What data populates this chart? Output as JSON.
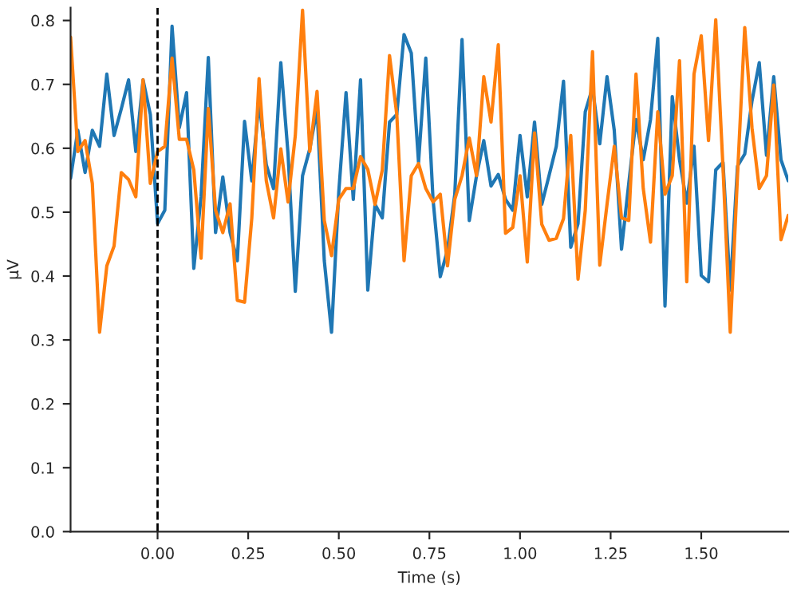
{
  "chart_data": {
    "type": "line",
    "xlabel": "Time (s)",
    "ylabel": "µV",
    "x": [
      -0.24,
      -0.22,
      -0.2,
      -0.18,
      -0.16,
      -0.14,
      -0.12,
      -0.1,
      -0.08,
      -0.06,
      -0.04,
      -0.02,
      0.0,
      0.02,
      0.04,
      0.06,
      0.08,
      0.1,
      0.12,
      0.14,
      0.16,
      0.18,
      0.2,
      0.22,
      0.24,
      0.26,
      0.28,
      0.3,
      0.32,
      0.34,
      0.36,
      0.38,
      0.4,
      0.42,
      0.44,
      0.46,
      0.48,
      0.5,
      0.52,
      0.54,
      0.56,
      0.58,
      0.6,
      0.62,
      0.64,
      0.66,
      0.68,
      0.7,
      0.72,
      0.74,
      0.76,
      0.78,
      0.8,
      0.82,
      0.84,
      0.86,
      0.88,
      0.9,
      0.92,
      0.94,
      0.96,
      0.98,
      1.0,
      1.02,
      1.04,
      1.06,
      1.08,
      1.1,
      1.12,
      1.14,
      1.16,
      1.18,
      1.2,
      1.22,
      1.24,
      1.26,
      1.28,
      1.3,
      1.32,
      1.34,
      1.36,
      1.38,
      1.4,
      1.42,
      1.44,
      1.46,
      1.48,
      1.5,
      1.52,
      1.54,
      1.56,
      1.58,
      1.6,
      1.62,
      1.64,
      1.66,
      1.68,
      1.7,
      1.72,
      1.74
    ],
    "series": [
      {
        "color": "#1f77b4",
        "values": [
          0.553,
          0.628,
          0.562,
          0.628,
          0.603,
          0.716,
          0.62,
          0.662,
          0.707,
          0.595,
          0.707,
          0.653,
          0.482,
          0.503,
          0.791,
          0.632,
          0.687,
          0.412,
          0.524,
          0.742,
          0.468,
          0.555,
          0.468,
          0.424,
          0.642,
          0.549,
          0.674,
          0.574,
          0.537,
          0.734,
          0.591,
          0.376,
          0.557,
          0.599,
          0.662,
          0.424,
          0.312,
          0.532,
          0.687,
          0.52,
          0.707,
          0.378,
          0.512,
          0.491,
          0.641,
          0.653,
          0.778,
          0.749,
          0.578,
          0.741,
          0.52,
          0.399,
          0.441,
          0.528,
          0.77,
          0.487,
          0.557,
          0.612,
          0.541,
          0.559,
          0.52,
          0.503,
          0.62,
          0.524,
          0.641,
          0.512,
          0.557,
          0.603,
          0.705,
          0.445,
          0.482,
          0.657,
          0.695,
          0.607,
          0.712,
          0.628,
          0.442,
          0.545,
          0.645,
          0.582,
          0.645,
          0.772,
          0.353,
          0.681,
          0.582,
          0.514,
          0.603,
          0.401,
          0.391,
          0.566,
          0.578,
          0.378,
          0.572,
          0.591,
          0.674,
          0.734,
          0.589,
          0.712,
          0.582,
          0.549
        ]
      },
      {
        "color": "#ff7f0e",
        "values": [
          0.774,
          0.595,
          0.612,
          0.545,
          0.312,
          0.416,
          0.447,
          0.562,
          0.551,
          0.524,
          0.707,
          0.545,
          0.595,
          0.603,
          0.741,
          0.614,
          0.614,
          0.566,
          0.428,
          0.662,
          0.503,
          0.468,
          0.513,
          0.362,
          0.359,
          0.491,
          0.709,
          0.549,
          0.491,
          0.599,
          0.516,
          0.62,
          0.816,
          0.595,
          0.689,
          0.487,
          0.432,
          0.52,
          0.537,
          0.537,
          0.587,
          0.567,
          0.512,
          0.566,
          0.745,
          0.653,
          0.424,
          0.557,
          0.576,
          0.537,
          0.516,
          0.528,
          0.416,
          0.52,
          0.557,
          0.616,
          0.557,
          0.712,
          0.641,
          0.762,
          0.467,
          0.476,
          0.557,
          0.422,
          0.624,
          0.481,
          0.456,
          0.459,
          0.49,
          0.62,
          0.395,
          0.503,
          0.751,
          0.417,
          0.512,
          0.603,
          0.491,
          0.487,
          0.716,
          0.537,
          0.453,
          0.657,
          0.528,
          0.557,
          0.737,
          0.391,
          0.716,
          0.776,
          0.612,
          0.801,
          0.57,
          0.312,
          0.557,
          0.789,
          0.632,
          0.537,
          0.557,
          0.699,
          0.457,
          0.495
        ]
      }
    ],
    "xlim": [
      -0.24,
      1.74
    ],
    "ylim": [
      0,
      0.82
    ],
    "xticks": [
      {
        "value": 0,
        "label": "0.00"
      },
      {
        "value": 0.25,
        "label": "0.25"
      },
      {
        "value": 0.5,
        "label": "0.50"
      },
      {
        "value": 0.75,
        "label": "0.75"
      },
      {
        "value": 1.0,
        "label": "1.00"
      },
      {
        "value": 1.25,
        "label": "1.25"
      },
      {
        "value": 1.5,
        "label": "1.50"
      }
    ],
    "yticks": [
      {
        "value": 0,
        "label": "0.0"
      },
      {
        "value": 0.1,
        "label": "0.1"
      },
      {
        "value": 0.2,
        "label": "0.2"
      },
      {
        "value": 0.3,
        "label": "0.3"
      },
      {
        "value": 0.4,
        "label": "0.4"
      },
      {
        "value": 0.5,
        "label": "0.5"
      },
      {
        "value": 0.6,
        "label": "0.6"
      },
      {
        "value": 0.7,
        "label": "0.7"
      },
      {
        "value": 0.8,
        "label": "0.8"
      }
    ],
    "ref_lines": [
      {
        "axis": "x",
        "value": 0,
        "color": "#000000",
        "line_style": "dashed"
      }
    ],
    "grid": false
  }
}
